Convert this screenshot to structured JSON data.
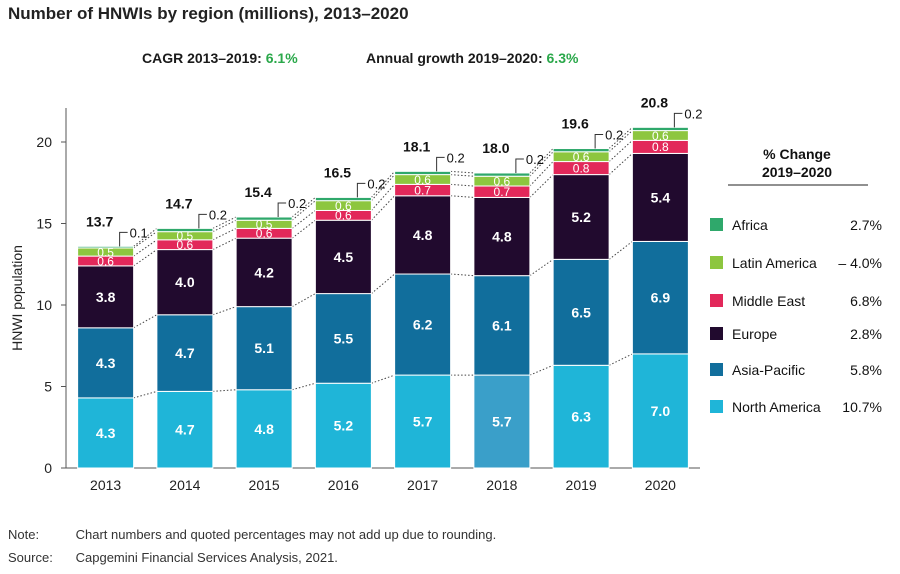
{
  "title": "Number of HNWIs by region (millions), 2013–2020",
  "kpis": {
    "cagr_label": "CAGR 2013–2019:",
    "cagr_value": "6.1%",
    "annual_label": "Annual growth 2019–2020:",
    "annual_value": "6.3%"
  },
  "legend_header_line1": "% Change",
  "legend_header_line2": "2019–2020",
  "footer": {
    "note_label": "Note:",
    "note_text": "Chart numbers and quoted percentages may not add up due to rounding.",
    "source_label": "Source:",
    "source_text": "Capgemini Financial Services Analysis, 2021."
  },
  "colors": {
    "north_america": "#1fb5d8",
    "north_america_highlight": "#3a9fc9",
    "asia_pacific": "#116e9c",
    "europe": "#210a2e",
    "middle_east": "#e2285a",
    "latin_america": "#8dc63f",
    "africa": "#2fa86b",
    "kpi_green": "#2aa84a"
  },
  "chart_data": {
    "type": "bar",
    "stacked": true,
    "ylabel": "HNWI population",
    "ylim": [
      0,
      22
    ],
    "yticks": [
      0,
      5,
      10,
      15,
      20
    ],
    "categories": [
      "2013",
      "2014",
      "2015",
      "2016",
      "2017",
      "2018",
      "2019",
      "2020"
    ],
    "highlight_bar": "2018",
    "series": [
      {
        "name": "North America",
        "change": "10.7%",
        "values": [
          4.3,
          4.7,
          4.8,
          5.2,
          5.7,
          5.7,
          6.3,
          7.0
        ]
      },
      {
        "name": "Asia-Pacific",
        "change": "5.8%",
        "values": [
          4.3,
          4.7,
          5.1,
          5.5,
          6.2,
          6.1,
          6.5,
          6.9
        ]
      },
      {
        "name": "Europe",
        "change": "2.8%",
        "values": [
          3.8,
          4.0,
          4.2,
          4.5,
          4.8,
          4.8,
          5.2,
          5.4
        ]
      },
      {
        "name": "Middle East",
        "change": "6.8%",
        "values": [
          0.6,
          0.6,
          0.6,
          0.6,
          0.7,
          0.7,
          0.8,
          0.8
        ]
      },
      {
        "name": "Latin America",
        "change": "– 4.0%",
        "values": [
          0.5,
          0.5,
          0.5,
          0.6,
          0.6,
          0.6,
          0.6,
          0.6
        ]
      },
      {
        "name": "Africa",
        "change": "2.7%",
        "values": [
          0.1,
          0.2,
          0.2,
          0.2,
          0.2,
          0.2,
          0.2,
          0.2
        ]
      }
    ],
    "totals": [
      "13.7",
      "14.7",
      "15.4",
      "16.5",
      "18.1",
      "18.0",
      "19.6",
      "20.8"
    ],
    "africa_labels": [
      "0.1",
      "0.2",
      "0.2",
      "0.2",
      "0.2",
      "0.2",
      "0.2",
      "0.2"
    ],
    "legend_order": [
      "Africa",
      "Latin America",
      "Middle East",
      "Europe",
      "Asia-Pacific",
      "North America"
    ],
    "legend_position": "right",
    "grid": false
  }
}
